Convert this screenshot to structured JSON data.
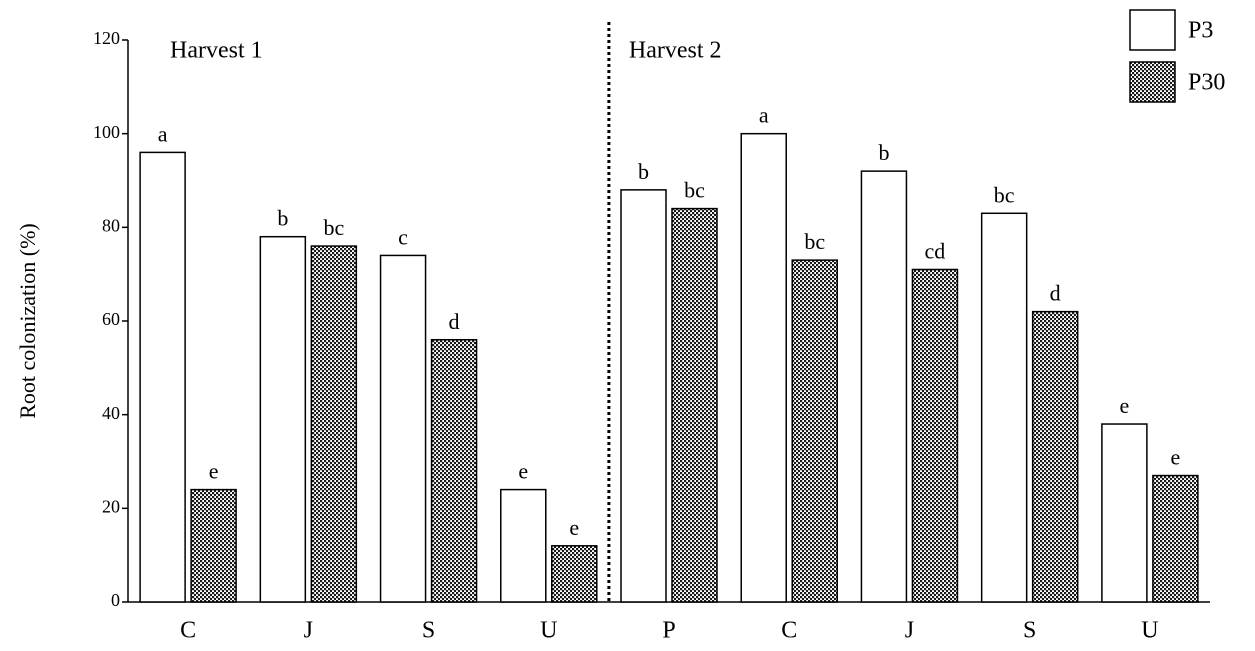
{
  "chart_data": {
    "type": "bar",
    "y_label": "Root colonization (%)",
    "annotations": [
      "Harvest 1",
      "Harvest 2"
    ],
    "categories": [
      "C",
      "J",
      "S",
      "U",
      "P",
      "C",
      "J",
      "S",
      "U"
    ],
    "series": [
      {
        "name": "P3",
        "color": "#ffffff",
        "values": [
          96,
          78,
          74,
          24,
          88,
          100,
          92,
          83,
          38
        ],
        "value_labels": [
          "a",
          "b",
          "c",
          "e",
          "b",
          "a",
          "b",
          "bc",
          "e"
        ]
      },
      {
        "name": "P30",
        "color": "#1a1a1a",
        "values": [
          24,
          76,
          56,
          12,
          84,
          73,
          71,
          62,
          27
        ],
        "value_labels": [
          "e",
          "bc",
          "d",
          "e",
          "bc",
          "bc",
          "cd",
          "d",
          "e"
        ]
      }
    ],
    "ylim": [
      0,
      120
    ],
    "yticks": [
      0,
      20,
      40,
      60,
      80,
      100,
      120
    ]
  }
}
